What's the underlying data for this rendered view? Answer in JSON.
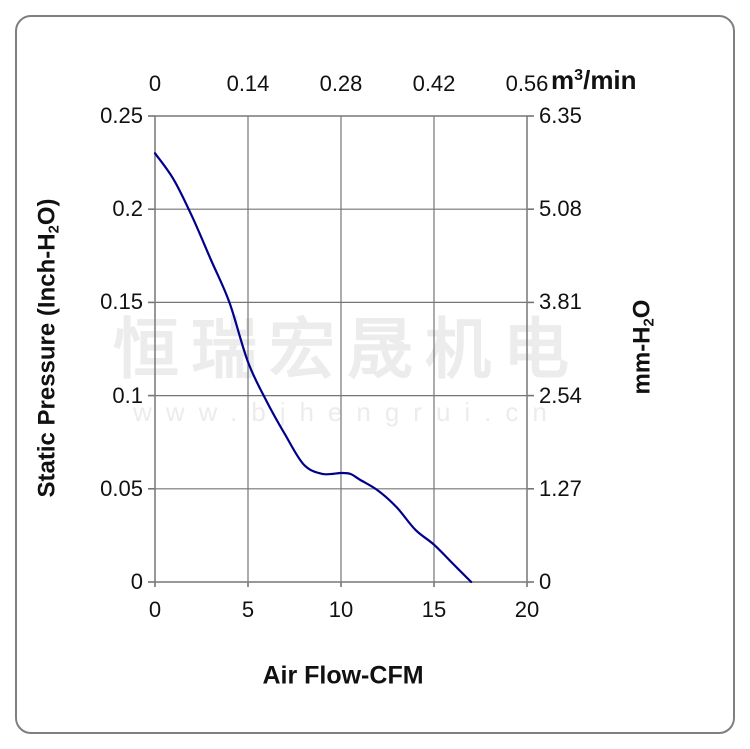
{
  "colors": {
    "curve": "#00008B",
    "grid": "#757575",
    "border": "#7f7f7f",
    "text": "#111111",
    "watermark": "#ececec"
  },
  "watermark": {
    "company": "恒瑞宏晟机电",
    "website": "www.bjhengrui.cn"
  },
  "chart_data": {
    "type": "line",
    "title": "",
    "grid": true,
    "x_axis_bottom": {
      "title": "Air Flow-CFM",
      "tick_labels": [
        "0",
        "5",
        "10",
        "15",
        "20"
      ],
      "range": [
        0,
        20
      ]
    },
    "x_axis_top": {
      "unit_pre": "m",
      "unit_sup": "3",
      "unit_post": "/min",
      "tick_labels": [
        "0",
        "0.14",
        "0.28",
        "0.42",
        "0.56"
      ]
    },
    "y_axis_left": {
      "title_pre": "Static Pressure (Inch-H",
      "title_sub": "2",
      "title_post": "O)",
      "tick_labels": [
        "0.25",
        "0.2",
        "0.15",
        "0.1",
        "0.05",
        "0"
      ],
      "range": [
        0,
        0.25
      ]
    },
    "y_axis_right": {
      "title_pre": "mm-H",
      "title_sub": "2",
      "title_post": "O",
      "tick_labels": [
        "6.35",
        "5.08",
        "3.81",
        "2.54",
        "1.27",
        "0"
      ]
    },
    "series": [
      {
        "name": "static-pressure-vs-airflow",
        "color": "#00008B",
        "points_cfm_inchH2O": [
          [
            0,
            0.23
          ],
          [
            1,
            0.216
          ],
          [
            2,
            0.196
          ],
          [
            3,
            0.173
          ],
          [
            4,
            0.15
          ],
          [
            5,
            0.118
          ],
          [
            6,
            0.097
          ],
          [
            7,
            0.079
          ],
          [
            8,
            0.063
          ],
          [
            9,
            0.058
          ],
          [
            10,
            0.0585
          ],
          [
            10.5,
            0.058
          ],
          [
            11,
            0.055
          ],
          [
            12,
            0.049
          ],
          [
            13,
            0.04
          ],
          [
            14,
            0.028
          ],
          [
            15,
            0.02
          ],
          [
            16,
            0.01
          ],
          [
            17,
            0
          ]
        ]
      }
    ]
  }
}
